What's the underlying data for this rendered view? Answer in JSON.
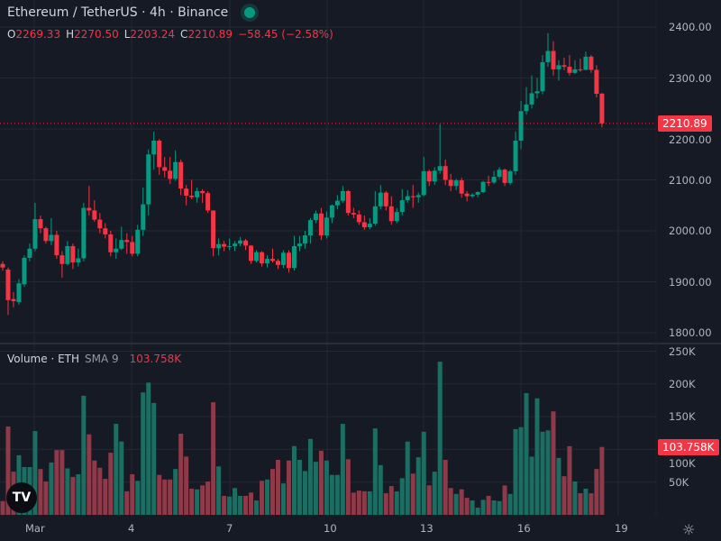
{
  "header": {
    "symbol": "Ethereum / TetherUS · 4h · Binance",
    "status_icon": "market-open-dot"
  },
  "ohlc": {
    "o_label": "O",
    "o": "2269.33",
    "h_label": "H",
    "h": "2270.50",
    "l_label": "L",
    "l": "2203.24",
    "c_label": "C",
    "c": "2210.89",
    "change": "−58.45 (−2.58%)"
  },
  "volume_legend": {
    "title": "Volume · ETH",
    "sma": "SMA 9",
    "value": "103.758K"
  },
  "colors": {
    "up": "#089981",
    "down": "#f23645",
    "vol_up": "#1c6e63",
    "vol_down": "#8e3a48",
    "background": "#161a25",
    "grid": "#242833"
  },
  "price_axis": [
    "2400.00",
    "2300.00",
    "2200.00",
    "2100.00",
    "2000.00",
    "1900.00",
    "1800.00"
  ],
  "volume_axis": [
    "250K",
    "200K",
    "150K",
    "100K",
    "50K"
  ],
  "last_price": "2210.89",
  "last_volume": "103.758K",
  "time_axis": [
    "Mar",
    "4",
    "7",
    "10",
    "13",
    "16",
    "19"
  ],
  "logo": "TV",
  "chart_data": {
    "type": "candlestick",
    "title": "Ethereum / TetherUS · 4h · Binance",
    "ylim": [
      1780,
      2420
    ],
    "volume_ylim": [
      0,
      260
    ],
    "volume_unit": "K",
    "x_ticks": [
      "Mar",
      "4",
      "7",
      "10",
      "13",
      "16",
      "19"
    ],
    "grid": true,
    "candles": [
      [
        1935,
        1940,
        1922,
        1928
      ],
      [
        1924,
        1928,
        1835,
        1864
      ],
      [
        1866,
        1880,
        1850,
        1862
      ],
      [
        1860,
        1905,
        1855,
        1897
      ],
      [
        1895,
        1952,
        1890,
        1947
      ],
      [
        1947,
        1975,
        1940,
        1965
      ],
      [
        1965,
        2055,
        1960,
        2023
      ],
      [
        2023,
        2030,
        1995,
        2005
      ],
      [
        2005,
        2008,
        1975,
        1980
      ],
      [
        1980,
        2025,
        1972,
        1992
      ],
      [
        1992,
        2000,
        1945,
        1952
      ],
      [
        1952,
        1960,
        1908,
        1935
      ],
      [
        1935,
        1980,
        1932,
        1970
      ],
      [
        1970,
        1975,
        1925,
        1938
      ],
      [
        1938,
        1965,
        1930,
        1946
      ],
      [
        1946,
        2055,
        1940,
        2045
      ],
      [
        2045,
        2088,
        2030,
        2040
      ],
      [
        2040,
        2060,
        2018,
        2022
      ],
      [
        2022,
        2035,
        1995,
        2005
      ],
      [
        2005,
        2015,
        1985,
        1993
      ],
      [
        1993,
        2000,
        1950,
        1958
      ],
      [
        1958,
        1985,
        1945,
        1965
      ],
      [
        1965,
        2008,
        1962,
        1982
      ],
      [
        1982,
        1995,
        1955,
        1978
      ],
      [
        1978,
        1990,
        1950,
        1955
      ],
      [
        1955,
        2012,
        1950,
        2002
      ],
      [
        2002,
        2085,
        1990,
        2052
      ],
      [
        2052,
        2160,
        2030,
        2150
      ],
      [
        2150,
        2195,
        2120,
        2177
      ],
      [
        2177,
        2180,
        2110,
        2125
      ],
      [
        2125,
        2145,
        2105,
        2118
      ],
      [
        2118,
        2145,
        2092,
        2102
      ],
      [
        2102,
        2158,
        2098,
        2135
      ],
      [
        2135,
        2140,
        2070,
        2083
      ],
      [
        2083,
        2090,
        2050,
        2069
      ],
      [
        2069,
        2100,
        2062,
        2066
      ],
      [
        2066,
        2085,
        2055,
        2078
      ],
      [
        2078,
        2082,
        2055,
        2074
      ],
      [
        2074,
        2078,
        2035,
        2040
      ],
      [
        2040,
        2040,
        1950,
        1966
      ],
      [
        1966,
        1985,
        1952,
        1974
      ],
      [
        1974,
        1980,
        1960,
        1969
      ],
      [
        1969,
        1985,
        1962,
        1970
      ],
      [
        1970,
        1980,
        1960,
        1975
      ],
      [
        1975,
        1988,
        1970,
        1981
      ],
      [
        1981,
        1984,
        1962,
        1971
      ],
      [
        1971,
        1972,
        1935,
        1941
      ],
      [
        1941,
        1962,
        1938,
        1958
      ],
      [
        1958,
        1960,
        1930,
        1936
      ],
      [
        1936,
        1952,
        1928,
        1945
      ],
      [
        1945,
        1965,
        1938,
        1941
      ],
      [
        1941,
        1945,
        1925,
        1933
      ],
      [
        1933,
        1962,
        1927,
        1957
      ],
      [
        1957,
        1962,
        1918,
        1927
      ],
      [
        1927,
        1990,
        1922,
        1970
      ],
      [
        1970,
        1990,
        1960,
        1975
      ],
      [
        1975,
        2000,
        1965,
        1991
      ],
      [
        1991,
        2025,
        1975,
        2021
      ],
      [
        2021,
        2040,
        2015,
        2034
      ],
      [
        2034,
        2045,
        1982,
        1991
      ],
      [
        1991,
        2038,
        1985,
        2026
      ],
      [
        2026,
        2052,
        2015,
        2050
      ],
      [
        2050,
        2070,
        2042,
        2059
      ],
      [
        2059,
        2088,
        2055,
        2078
      ],
      [
        2078,
        2080,
        2030,
        2035
      ],
      [
        2035,
        2045,
        2025,
        2032
      ],
      [
        2032,
        2040,
        2012,
        2017
      ],
      [
        2017,
        2030,
        2002,
        2007
      ],
      [
        2007,
        2025,
        2003,
        2014
      ],
      [
        2014,
        2078,
        2010,
        2048
      ],
      [
        2048,
        2090,
        2042,
        2075
      ],
      [
        2075,
        2078,
        2040,
        2048
      ],
      [
        2048,
        2068,
        2012,
        2019
      ],
      [
        2019,
        2045,
        2015,
        2037
      ],
      [
        2037,
        2082,
        2030,
        2060
      ],
      [
        2060,
        2080,
        2055,
        2068
      ],
      [
        2068,
        2090,
        2045,
        2066
      ],
      [
        2066,
        2075,
        2055,
        2070
      ],
      [
        2070,
        2145,
        2068,
        2117
      ],
      [
        2117,
        2120,
        2088,
        2097
      ],
      [
        2097,
        2125,
        2090,
        2118
      ],
      [
        2118,
        2209,
        2112,
        2127
      ],
      [
        2127,
        2140,
        2090,
        2100
      ],
      [
        2100,
        2112,
        2078,
        2088
      ],
      [
        2088,
        2102,
        2080,
        2099
      ],
      [
        2099,
        2104,
        2065,
        2073
      ],
      [
        2073,
        2078,
        2058,
        2068
      ],
      [
        2068,
        2074,
        2065,
        2071
      ],
      [
        2071,
        2078,
        2066,
        2076
      ],
      [
        2076,
        2098,
        2074,
        2096
      ],
      [
        2096,
        2108,
        2088,
        2095
      ],
      [
        2095,
        2118,
        2092,
        2106
      ],
      [
        2106,
        2125,
        2102,
        2120
      ],
      [
        2120,
        2122,
        2088,
        2094
      ],
      [
        2094,
        2120,
        2090,
        2117
      ],
      [
        2117,
        2195,
        2110,
        2177
      ],
      [
        2177,
        2255,
        2160,
        2235
      ],
      [
        2235,
        2282,
        2228,
        2248
      ],
      [
        2248,
        2305,
        2240,
        2270
      ],
      [
        2270,
        2300,
        2260,
        2274
      ],
      [
        2274,
        2345,
        2268,
        2331
      ],
      [
        2331,
        2388,
        2322,
        2353
      ],
      [
        2353,
        2372,
        2305,
        2317
      ],
      [
        2317,
        2335,
        2295,
        2325
      ],
      [
        2325,
        2340,
        2315,
        2322
      ],
      [
        2322,
        2345,
        2305,
        2310
      ],
      [
        2310,
        2335,
        2308,
        2317
      ],
      [
        2317,
        2338,
        2312,
        2316
      ],
      [
        2316,
        2352,
        2315,
        2342
      ],
      [
        2342,
        2345,
        2310,
        2316
      ],
      [
        2316,
        2325,
        2262,
        2269
      ],
      [
        2269.33,
        2270.5,
        2203.24,
        2210.89
      ]
    ],
    "volume": [
      21,
      135,
      66,
      91,
      73,
      73,
      128,
      70,
      51,
      80,
      99,
      99,
      71,
      58,
      62,
      182,
      123,
      83,
      72,
      55,
      95,
      139,
      112,
      36,
      62,
      52,
      187,
      202,
      171,
      61,
      54,
      54,
      70,
      124,
      89,
      40,
      39,
      45,
      51,
      172,
      74,
      29,
      28,
      41,
      29,
      29,
      34,
      22,
      52,
      54,
      70,
      84,
      48,
      83,
      105,
      84,
      67,
      116,
      81,
      98,
      83,
      61,
      61,
      139,
      85,
      34,
      37,
      36,
      36,
      132,
      76,
      33,
      44,
      36,
      56,
      112,
      63,
      88,
      127,
      45,
      66,
      234,
      84,
      41,
      32,
      39,
      26,
      22,
      11,
      23,
      29,
      22,
      21,
      45,
      32,
      131,
      134,
      186,
      89,
      178,
      127,
      129,
      158,
      87,
      59,
      105,
      51,
      33,
      40,
      33,
      70,
      103.758
    ]
  }
}
